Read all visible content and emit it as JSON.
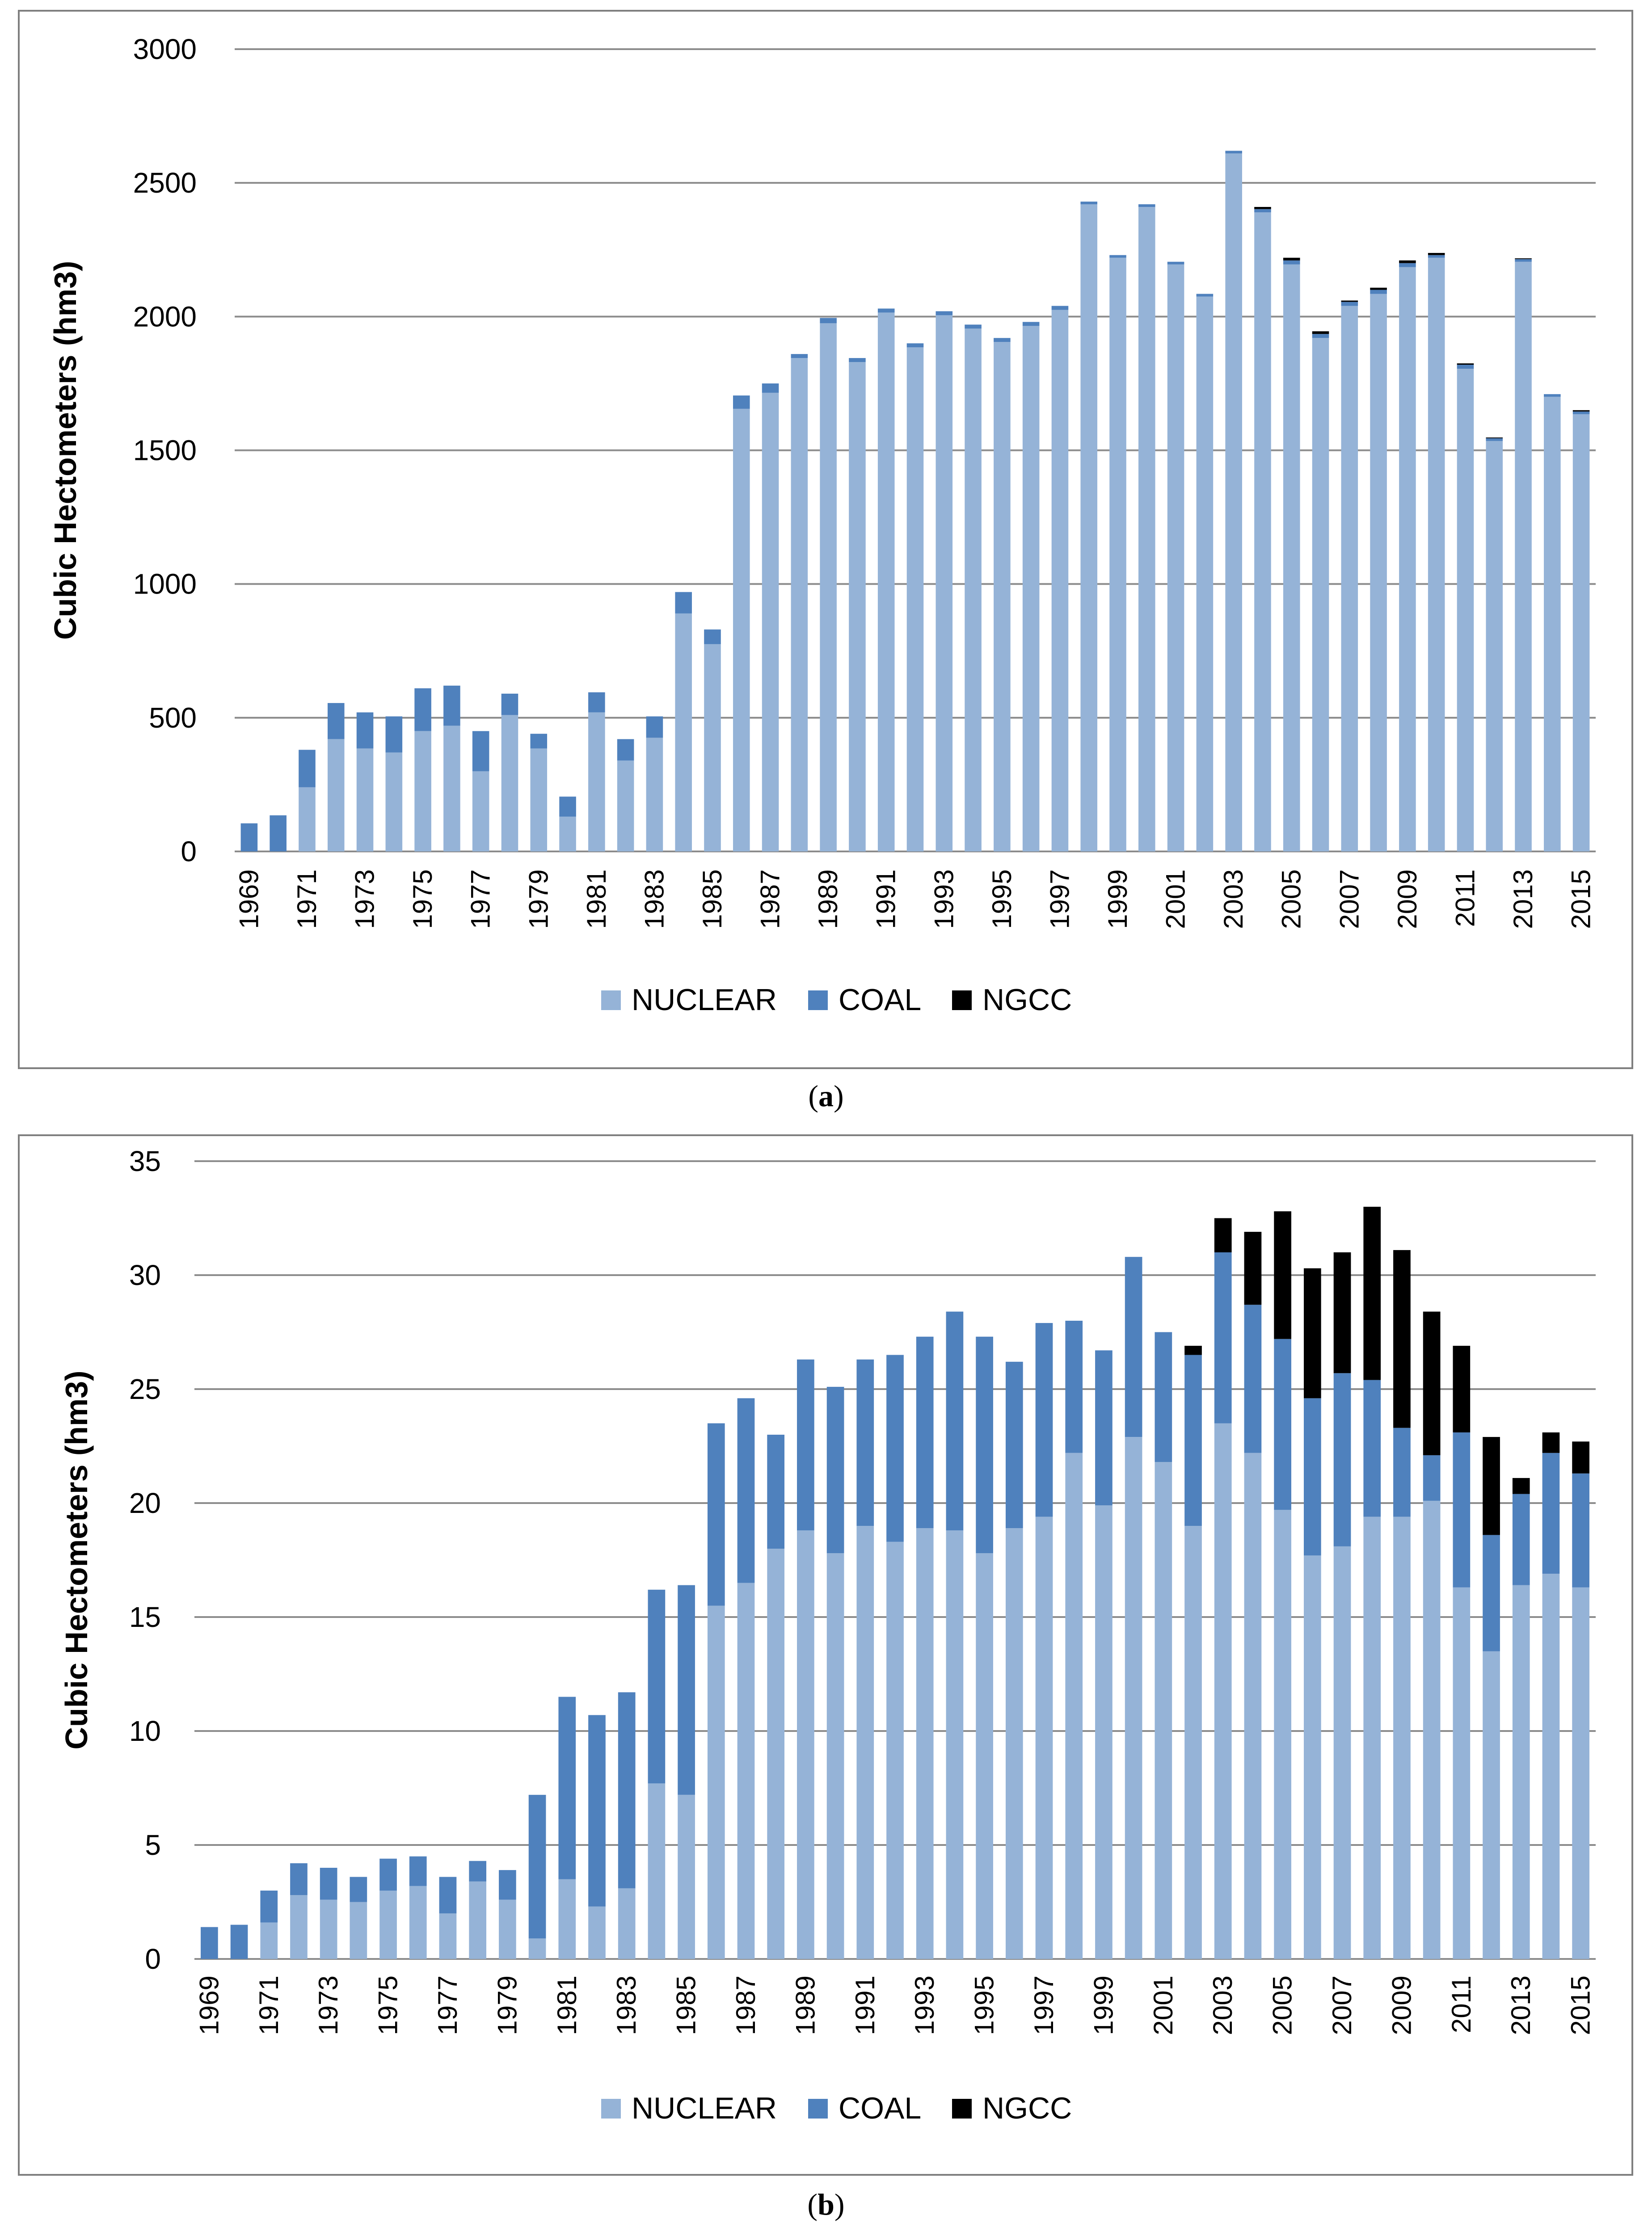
{
  "colors": {
    "NUCLEAR": "#95b3d7",
    "COAL": "#4f81bd",
    "NGCC": "#000000"
  },
  "chart_data": [
    {
      "type": "bar",
      "stacked": true,
      "caption": "(a)",
      "ylabel": "Cubic Hectometers (hm3)",
      "ylim": [
        0,
        3000
      ],
      "yticks": [
        0,
        500,
        1000,
        1500,
        2000,
        2500,
        3000
      ],
      "grid": true,
      "legend": "bottom",
      "legend_labels": [
        "NUCLEAR",
        "COAL",
        "NGCC"
      ],
      "categories": [
        "1969",
        "1970",
        "1971",
        "1972",
        "1973",
        "1974",
        "1975",
        "1976",
        "1977",
        "1978",
        "1979",
        "1980",
        "1981",
        "1982",
        "1983",
        "1984",
        "1985",
        "1986",
        "1987",
        "1988",
        "1989",
        "1990",
        "1991",
        "1992",
        "1993",
        "1994",
        "1995",
        "1996",
        "1997",
        "1998",
        "1999",
        "2000",
        "2001",
        "2002",
        "2003",
        "2004",
        "2005",
        "2006",
        "2007",
        "2008",
        "2009",
        "2010",
        "2011",
        "2012",
        "2013",
        "2014",
        "2015"
      ],
      "tick_labels": [
        "1969",
        "",
        "1971",
        "",
        "1973",
        "",
        "1975",
        "",
        "1977",
        "",
        "1979",
        "",
        "1981",
        "",
        "1983",
        "",
        "1985",
        "",
        "1987",
        "",
        "1989",
        "",
        "1991",
        "",
        "1993",
        "",
        "1995",
        "",
        "1997",
        "",
        "1999",
        "",
        "2001",
        "",
        "2003",
        "",
        "2005",
        "",
        "2007",
        "",
        "2009",
        "",
        "2011",
        "",
        "2013",
        "",
        "2015"
      ],
      "series": [
        {
          "name": "NUCLEAR",
          "values": [
            0,
            0,
            240,
            420,
            385,
            370,
            450,
            470,
            300,
            510,
            385,
            130,
            520,
            340,
            425,
            890,
            775,
            1655,
            1715,
            1845,
            1975,
            1830,
            2015,
            1885,
            2005,
            1955,
            1905,
            1965,
            2025,
            2420,
            2220,
            2410,
            2195,
            2075,
            2610,
            2390,
            2195,
            1920,
            2040,
            2085,
            2185,
            2220,
            1805,
            1535,
            2205,
            1700,
            1635
          ]
        },
        {
          "name": "COAL",
          "values": [
            105,
            135,
            140,
            135,
            135,
            135,
            160,
            150,
            150,
            80,
            55,
            75,
            75,
            80,
            80,
            80,
            55,
            50,
            35,
            15,
            20,
            15,
            15,
            15,
            15,
            15,
            15,
            15,
            15,
            10,
            10,
            10,
            10,
            10,
            10,
            12,
            15,
            15,
            15,
            15,
            15,
            10,
            15,
            10,
            10,
            10,
            10
          ]
        },
        {
          "name": "NGCC",
          "values": [
            0,
            0,
            0,
            0,
            0,
            0,
            0,
            0,
            0,
            0,
            0,
            0,
            0,
            0,
            0,
            0,
            0,
            0,
            0,
            0,
            0,
            0,
            0,
            0,
            0,
            0,
            0,
            0,
            0,
            0,
            0,
            0,
            0,
            0,
            0,
            8,
            10,
            10,
            5,
            8,
            10,
            8,
            5,
            3,
            3,
            0,
            5
          ]
        }
      ]
    },
    {
      "type": "bar",
      "stacked": true,
      "caption": "(b)",
      "ylabel": "Cubic Hectometers (hm3)",
      "ylim": [
        0,
        35
      ],
      "yticks": [
        0,
        5,
        10,
        15,
        20,
        25,
        30,
        35
      ],
      "grid": true,
      "legend": "bottom",
      "legend_labels": [
        "NUCLEAR",
        "COAL",
        "NGCC"
      ],
      "categories": [
        "1969",
        "1970",
        "1971",
        "1972",
        "1973",
        "1974",
        "1975",
        "1976",
        "1977",
        "1978",
        "1979",
        "1980",
        "1981",
        "1982",
        "1983",
        "1984",
        "1985",
        "1986",
        "1987",
        "1988",
        "1989",
        "1990",
        "1991",
        "1992",
        "1993",
        "1994",
        "1995",
        "1996",
        "1997",
        "1998",
        "1999",
        "2000",
        "2001",
        "2002",
        "2003",
        "2004",
        "2005",
        "2006",
        "2007",
        "2008",
        "2009",
        "2010",
        "2011",
        "2012",
        "2013",
        "2014",
        "2015"
      ],
      "tick_labels": [
        "1969",
        "",
        "1971",
        "",
        "1973",
        "",
        "1975",
        "",
        "1977",
        "",
        "1979",
        "",
        "1981",
        "",
        "1983",
        "",
        "1985",
        "",
        "1987",
        "",
        "1989",
        "",
        "1991",
        "",
        "1993",
        "",
        "1995",
        "",
        "1997",
        "",
        "1999",
        "",
        "2001",
        "",
        "2003",
        "",
        "2005",
        "",
        "2007",
        "",
        "2009",
        "",
        "2011",
        "",
        "2013",
        "",
        "2015"
      ],
      "series": [
        {
          "name": "NUCLEAR",
          "values": [
            0,
            0,
            1.6,
            2.8,
            2.6,
            2.5,
            3.0,
            3.2,
            2.0,
            3.4,
            2.6,
            0.9,
            3.5,
            2.3,
            3.1,
            7.7,
            7.2,
            15.5,
            16.5,
            18.0,
            18.8,
            17.8,
            19.0,
            18.3,
            18.9,
            18.8,
            17.8,
            18.9,
            19.4,
            22.2,
            19.9,
            22.9,
            21.8,
            19.0,
            23.5,
            22.2,
            19.7,
            17.7,
            18.1,
            19.4,
            19.4,
            20.1,
            16.3,
            13.5,
            16.4,
            16.9,
            16.3
          ]
        },
        {
          "name": "COAL",
          "values": [
            1.4,
            1.5,
            1.4,
            1.4,
            1.4,
            1.1,
            1.4,
            1.3,
            1.6,
            0.9,
            1.3,
            6.3,
            8.0,
            8.4,
            8.6,
            8.5,
            9.2,
            8.0,
            8.1,
            5.0,
            7.5,
            7.3,
            7.3,
            8.2,
            8.4,
            9.6,
            9.5,
            7.3,
            8.5,
            5.8,
            6.8,
            7.9,
            5.7,
            7.5,
            7.5,
            6.5,
            7.5,
            6.9,
            7.6,
            6.0,
            3.9,
            2.0,
            6.8,
            5.1,
            4.0,
            5.3,
            5.0
          ]
        },
        {
          "name": "NGCC",
          "values": [
            0,
            0,
            0,
            0,
            0,
            0,
            0,
            0,
            0,
            0,
            0,
            0,
            0,
            0,
            0,
            0,
            0,
            0,
            0,
            0,
            0,
            0,
            0,
            0,
            0,
            0,
            0,
            0,
            0,
            0,
            0,
            0,
            0,
            0.4,
            1.5,
            3.2,
            5.6,
            5.7,
            5.3,
            7.6,
            7.8,
            6.3,
            3.8,
            4.3,
            0.7,
            0.9,
            1.4
          ]
        }
      ]
    }
  ]
}
